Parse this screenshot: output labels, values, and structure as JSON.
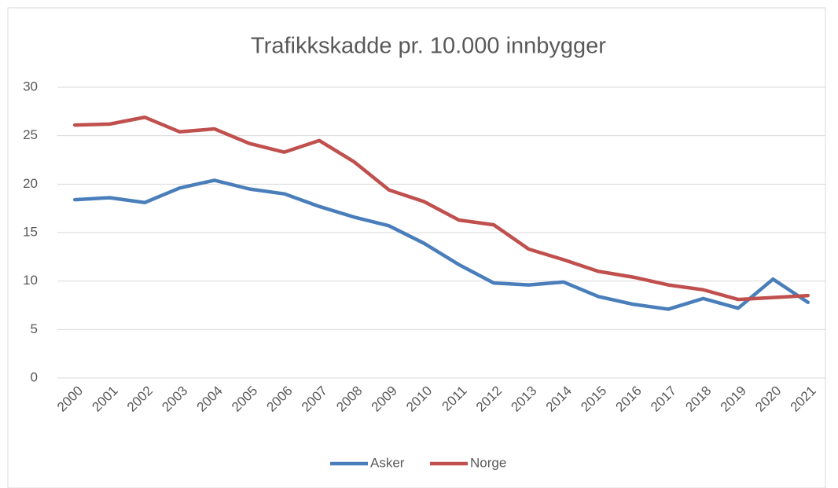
{
  "chart_data": {
    "type": "line",
    "title": "Trafikkskadde pr. 10.000 innbygger",
    "categories": [
      "2000",
      "2001",
      "2002",
      "2003",
      "2004",
      "2005",
      "2006",
      "2007",
      "2008",
      "2009",
      "2010",
      "2011",
      "2012",
      "2013",
      "2014",
      "2015",
      "2016",
      "2017",
      "2018",
      "2019",
      "2020",
      "2021"
    ],
    "series": [
      {
        "name": "Asker",
        "color": "#4a7ebb",
        "values": [
          18.4,
          18.6,
          18.1,
          19.6,
          20.4,
          19.5,
          19.0,
          17.7,
          16.6,
          15.7,
          13.9,
          11.7,
          9.8,
          9.6,
          9.9,
          8.4,
          7.6,
          7.1,
          8.2,
          7.2,
          10.2,
          7.8
        ]
      },
      {
        "name": "Norge",
        "color": "#c0504d",
        "values": [
          26.1,
          26.2,
          26.9,
          25.4,
          25.7,
          24.2,
          23.3,
          24.5,
          22.3,
          19.4,
          18.2,
          16.3,
          15.8,
          13.3,
          12.2,
          11.0,
          10.4,
          9.6,
          9.1,
          8.1,
          8.3,
          8.5
        ]
      }
    ],
    "ylim": [
      0,
      30
    ],
    "yticks": [
      0,
      5,
      10,
      15,
      20,
      25,
      30
    ],
    "grid": true,
    "legend": "bottom"
  }
}
